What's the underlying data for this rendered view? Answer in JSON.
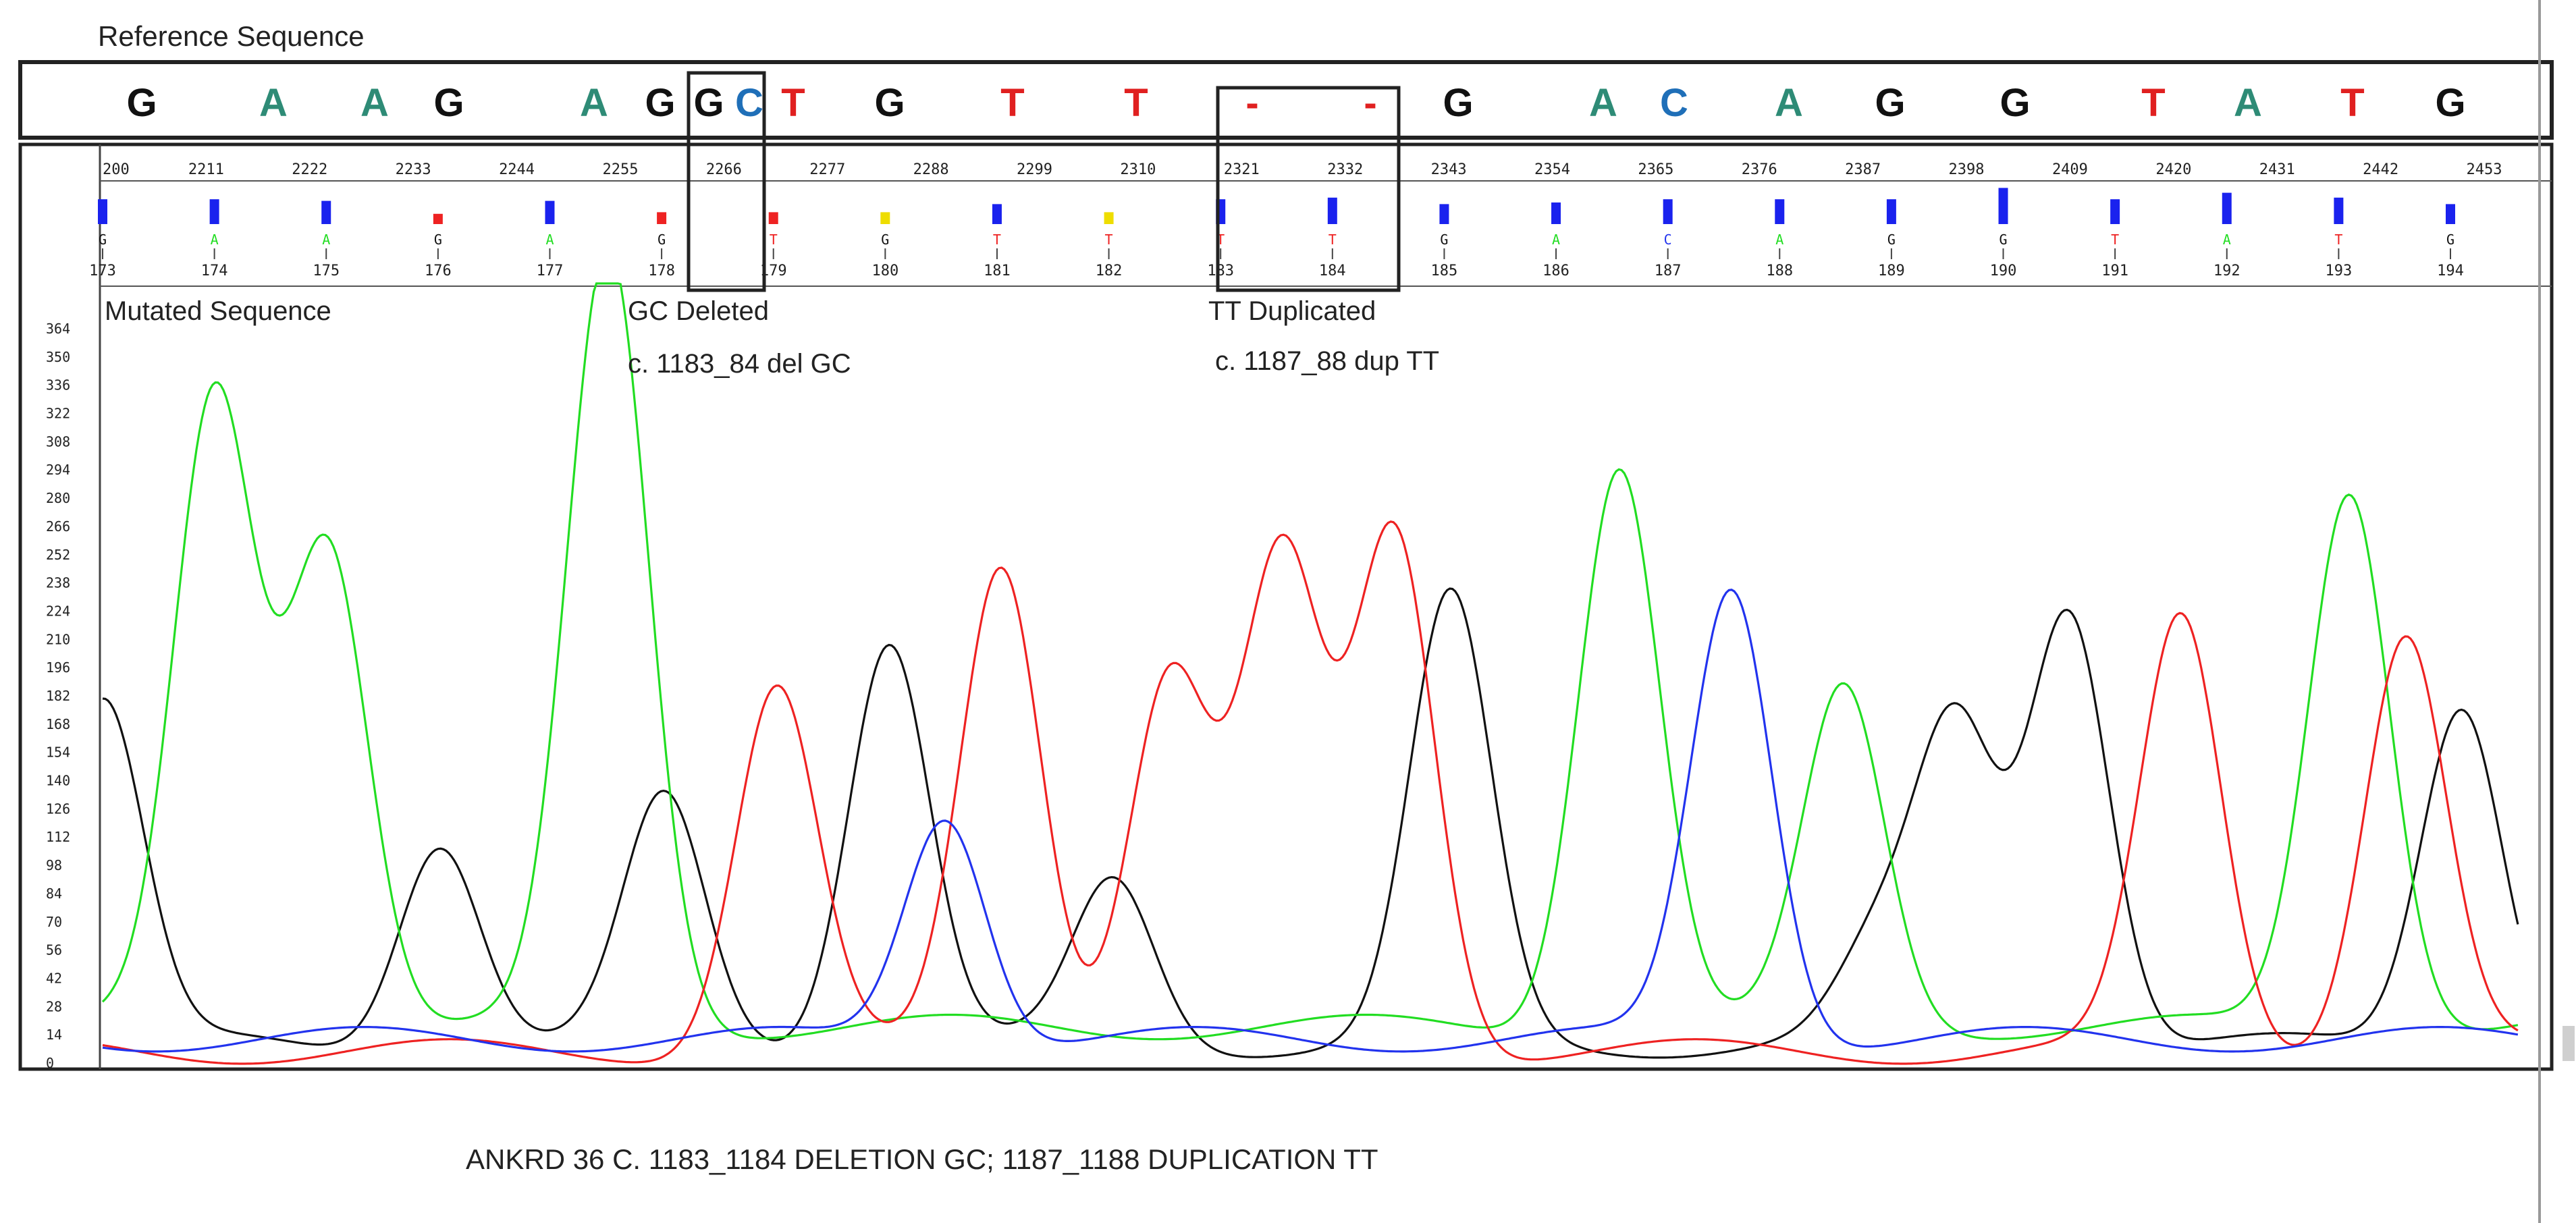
{
  "header": {
    "reference_label": "Reference Sequence"
  },
  "reference_sequence": {
    "bases": [
      "G",
      "A",
      "A",
      "G",
      "A",
      "G",
      "G",
      "C",
      "T",
      "G",
      "T",
      "T",
      "-",
      "-",
      "G",
      "A",
      "C",
      "A",
      "G",
      "G",
      "T",
      "A",
      "T",
      "G"
    ]
  },
  "base_colors": {
    "A": "#2e8b76",
    "C": "#1f6fb8",
    "G": "#111111",
    "T": "#e02020",
    "-": "#e02020"
  },
  "trace_colors": {
    "A": "#22dd22",
    "C": "#2233ee",
    "G": "#111111",
    "T": "#ee2222"
  },
  "bar_colors": {
    "A": "#1a22ee",
    "C": "#1a22ee",
    "G": "#1a22ee",
    "T": "#1a22ee",
    "low_red": "#ee2222",
    "low_yellow": "#eedd00"
  },
  "ruler": {
    "labels": [
      "200",
      "2211",
      "2222",
      "2233",
      "2244",
      "2255",
      "2266",
      "2277",
      "2288",
      "2299",
      "2310",
      "2321",
      "2332",
      "2343",
      "2354",
      "2365",
      "2376",
      "2387",
      "2398",
      "2409",
      "2420",
      "2431",
      "2442",
      "2453"
    ]
  },
  "base_calls": [
    {
      "letter": "G",
      "num": "173"
    },
    {
      "letter": "A",
      "num": "174"
    },
    {
      "letter": "A",
      "num": "175"
    },
    {
      "letter": "G",
      "num": "176"
    },
    {
      "letter": "A",
      "num": "177"
    },
    {
      "letter": "G",
      "num": "178"
    },
    {
      "letter": "T",
      "num": "179"
    },
    {
      "letter": "G",
      "num": "180"
    },
    {
      "letter": "T",
      "num": "181"
    },
    {
      "letter": "T",
      "num": "182"
    },
    {
      "letter": "T",
      "num": "183"
    },
    {
      "letter": "T",
      "num": "184"
    },
    {
      "letter": "G",
      "num": "185"
    },
    {
      "letter": "A",
      "num": "186"
    },
    {
      "letter": "C",
      "num": "187"
    },
    {
      "letter": "A",
      "num": "188"
    },
    {
      "letter": "G",
      "num": "189"
    },
    {
      "letter": "G",
      "num": "190"
    },
    {
      "letter": "T",
      "num": "191"
    },
    {
      "letter": "A",
      "num": "192"
    },
    {
      "letter": "T",
      "num": "193"
    },
    {
      "letter": "G",
      "num": "194"
    }
  ],
  "annotations": {
    "mutated_label": "Mutated Sequence",
    "gc_deleted": "GC Deleted",
    "gc_deleted_hgvs": "c. 1183_84 del GC",
    "tt_duplicated": "TT Duplicated",
    "tt_duplicated_hgvs": "c. 1187_88 dup TT"
  },
  "footer": {
    "caption": "ANKRD 36  C. 1183_1184 DELETION GC; 1187_1188 DUPLICATION TT"
  },
  "chart_data": {
    "type": "line",
    "title": "",
    "xlabel": "",
    "ylabel": "",
    "x_range": [
      0,
      21.5
    ],
    "y_range": [
      0,
      360
    ],
    "y_ticks": [
      "364",
      "350",
      "336",
      "322",
      "308",
      "294",
      "280",
      "266",
      "252",
      "238",
      "224",
      "210",
      "196",
      "182",
      "168",
      "154",
      "140",
      "126",
      "112",
      "98",
      "84",
      "70",
      "56",
      "42",
      "28",
      "14",
      "0"
    ],
    "series": [
      {
        "name": "G",
        "peaks": [
          {
            "x": 0,
            "y": 170
          },
          {
            "x": 3,
            "y": 102
          },
          {
            "x": 5,
            "y": 120
          },
          {
            "x": 7,
            "y": 200
          },
          {
            "x": 9,
            "y": 80
          },
          {
            "x": 12,
            "y": 218
          },
          {
            "x": 15.8,
            "y": 45
          },
          {
            "x": 16.5,
            "y": 155
          },
          {
            "x": 17.5,
            "y": 216
          },
          {
            "x": 21,
            "y": 170
          }
        ]
      },
      {
        "name": "A",
        "peaks": [
          {
            "x": 1,
            "y": 310
          },
          {
            "x": 2,
            "y": 240
          },
          {
            "x": 4.5,
            "y": 380
          },
          {
            "x": 13.5,
            "y": 278
          },
          {
            "x": 15.5,
            "y": 165
          },
          {
            "x": 20,
            "y": 265
          }
        ]
      },
      {
        "name": "T",
        "peaks": [
          {
            "x": 6,
            "y": 178
          },
          {
            "x": 8,
            "y": 240
          },
          {
            "x": 9.5,
            "y": 185
          },
          {
            "x": 10.5,
            "y": 238
          },
          {
            "x": 11.5,
            "y": 255
          },
          {
            "x": 18.5,
            "y": 212
          },
          {
            "x": 20.5,
            "y": 205
          }
        ]
      },
      {
        "name": "C",
        "peaks": [
          {
            "x": 7.5,
            "y": 112
          },
          {
            "x": 14.5,
            "y": 222
          }
        ]
      }
    ],
    "base_call_quality": [
      {
        "x": 0,
        "h": 0.6
      },
      {
        "x": 1,
        "h": 0.6
      },
      {
        "x": 2,
        "h": 0.55
      },
      {
        "x": 3,
        "h": 0.15,
        "low": "red"
      },
      {
        "x": 4,
        "h": 0.55
      },
      {
        "x": 5,
        "h": 0.2,
        "low": "red"
      },
      {
        "x": 6,
        "h": 0.2,
        "low": "red"
      },
      {
        "x": 7,
        "h": 0.2,
        "low": "yellow"
      },
      {
        "x": 8,
        "h": 0.45
      },
      {
        "x": 9,
        "h": 0.2,
        "low": "yellow"
      },
      {
        "x": 10,
        "h": 0.6
      },
      {
        "x": 11,
        "h": 0.65
      },
      {
        "x": 12,
        "h": 0.45
      },
      {
        "x": 13,
        "h": 0.5
      },
      {
        "x": 14,
        "h": 0.6
      },
      {
        "x": 15,
        "h": 0.6
      },
      {
        "x": 16,
        "h": 0.6
      },
      {
        "x": 17,
        "h": 0.95
      },
      {
        "x": 18,
        "h": 0.6
      },
      {
        "x": 19,
        "h": 0.8
      },
      {
        "x": 20,
        "h": 0.65
      },
      {
        "x": 21,
        "h": 0.45
      }
    ]
  }
}
